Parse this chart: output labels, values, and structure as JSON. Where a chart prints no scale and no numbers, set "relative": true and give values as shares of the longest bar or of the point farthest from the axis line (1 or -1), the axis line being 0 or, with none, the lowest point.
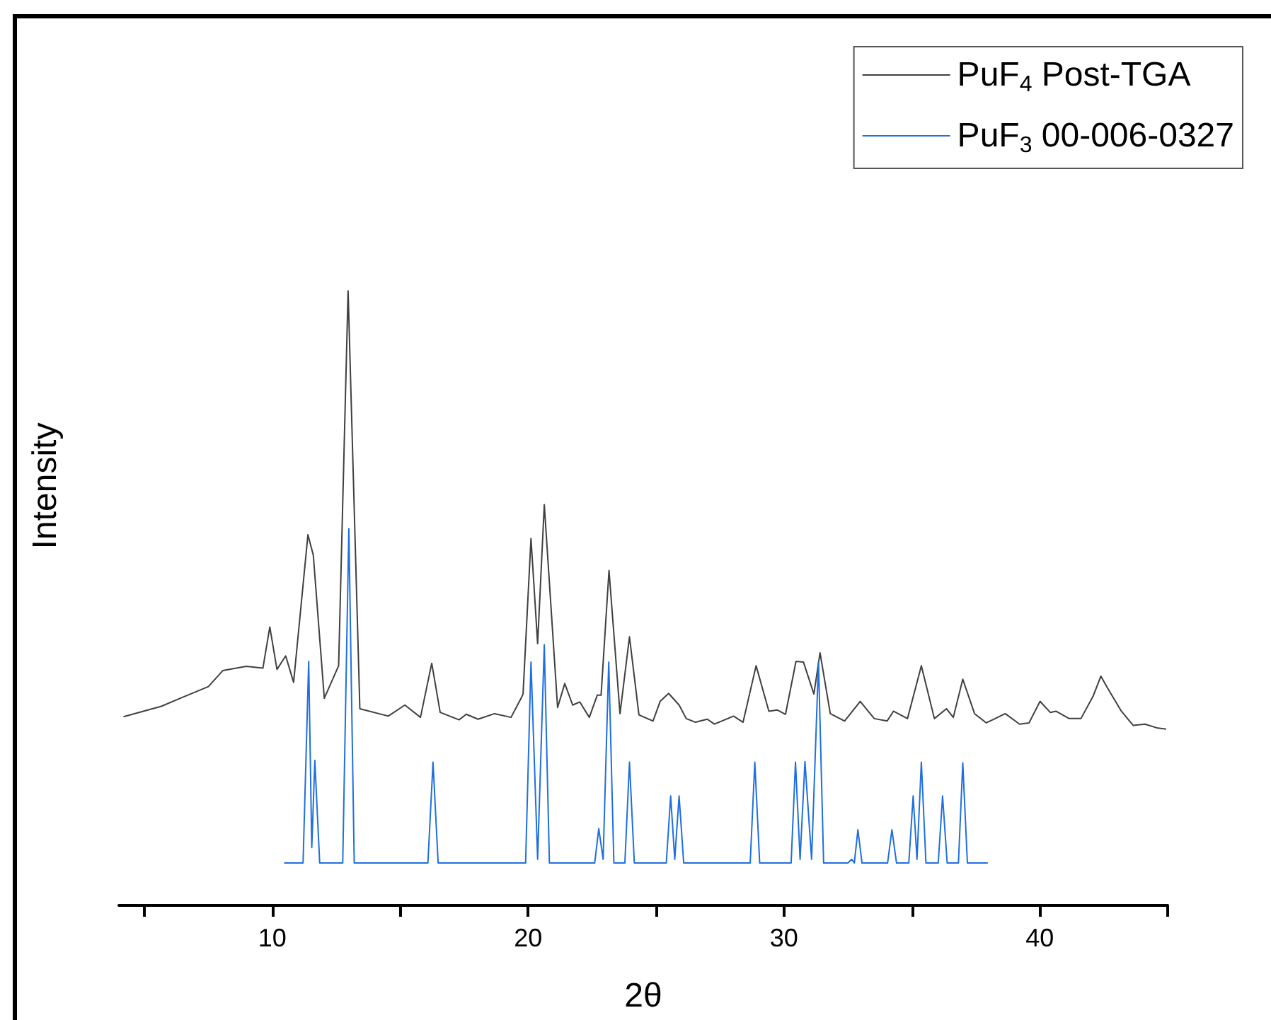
{
  "chart_data": {
    "type": "line",
    "relative": true,
    "xlabel": "2θ",
    "ylabel": "Intensity",
    "xlim": [
      4,
      45
    ],
    "xticks": [
      {
        "value": 5,
        "label": null
      },
      10,
      {
        "value": 15,
        "label": null
      },
      20,
      {
        "value": 25,
        "label": null
      },
      30,
      {
        "value": 35,
        "label": null
      },
      40,
      {
        "value": 45,
        "label": null
      }
    ],
    "legend": "top right",
    "grid": false,
    "marker": "none",
    "line_style": "solid",
    "series": [
      {
        "name": "PuF$_{4}$ Post-TGA",
        "color": "#404040",
        "x": [
          4.18,
          5.66,
          6.4,
          7.5,
          8.06,
          8.98,
          9.63,
          9.9,
          10.18,
          10.52,
          10.83,
          11.39,
          11.6,
          12.03,
          12.59,
          12.96,
          13.42,
          14.53,
          15.18,
          15.79,
          16.23,
          16.56,
          17.3,
          17.58,
          18.04,
          18.69,
          19.33,
          19.71,
          19.8,
          20.11,
          20.37,
          20.63,
          21.15,
          21.43,
          21.74,
          22.02,
          22.39,
          22.7,
          22.85,
          23.16,
          23.59,
          23.96,
          24.33,
          24.88,
          25.16,
          25.49,
          25.9,
          26.18,
          26.54,
          27.0,
          27.28,
          28.03,
          28.4,
          28.91,
          29.41,
          29.73,
          30.06,
          30.47,
          30.76,
          31.17,
          31.41,
          31.81,
          32.37,
          32.98,
          33.53,
          34.03,
          34.28,
          34.83,
          35.37,
          35.88,
          36.35,
          36.62,
          36.99,
          37.45,
          37.91,
          38.65,
          39.21,
          39.58,
          40.01,
          40.41,
          40.63,
          41.15,
          41.61,
          42.08,
          42.39,
          42.63,
          43.19,
          43.65,
          44.11,
          44.57,
          44.94
        ],
        "values": [
          0.307,
          0.324,
          0.337,
          0.356,
          0.382,
          0.389,
          0.386,
          0.453,
          0.384,
          0.406,
          0.363,
          0.603,
          0.57,
          0.337,
          0.39,
          1.0,
          0.32,
          0.308,
          0.326,
          0.306,
          0.394,
          0.314,
          0.302,
          0.311,
          0.303,
          0.312,
          0.306,
          0.336,
          0.344,
          0.597,
          0.426,
          0.652,
          0.322,
          0.361,
          0.326,
          0.331,
          0.306,
          0.342,
          0.342,
          0.545,
          0.312,
          0.437,
          0.31,
          0.3,
          0.332,
          0.345,
          0.326,
          0.304,
          0.298,
          0.303,
          0.295,
          0.308,
          0.298,
          0.39,
          0.316,
          0.318,
          0.311,
          0.397,
          0.396,
          0.344,
          0.411,
          0.312,
          0.3,
          0.332,
          0.304,
          0.3,
          0.316,
          0.304,
          0.39,
          0.304,
          0.32,
          0.306,
          0.368,
          0.312,
          0.297,
          0.312,
          0.295,
          0.297,
          0.332,
          0.314,
          0.316,
          0.304,
          0.304,
          0.34,
          0.373,
          0.355,
          0.316,
          0.293,
          0.295,
          0.289,
          0.287
        ]
      },
      {
        "name": "PuF$_{3}$ 00-006-0327",
        "color": "#1f6fe0",
        "x": [
          10.46,
          11.2,
          11.42,
          11.54,
          11.66,
          11.85,
          12.75,
          12.99,
          13.2,
          16.08,
          16.28,
          16.48,
          19.9,
          20.11,
          20.37,
          20.63,
          20.83,
          22.6,
          22.76,
          22.93,
          23.15,
          23.35,
          23.78,
          23.96,
          24.15,
          25.4,
          25.57,
          25.73,
          25.9,
          26.08,
          28.68,
          28.86,
          29.05,
          30.28,
          30.45,
          30.63,
          30.82,
          31.08,
          31.35,
          31.55,
          32.5,
          32.65,
          32.75,
          32.89,
          33.05,
          34.05,
          34.22,
          34.4,
          34.88,
          35.05,
          35.2,
          35.37,
          35.55,
          36.03,
          36.2,
          36.38,
          36.82,
          36.99,
          37.17,
          37.97
        ],
        "values": [
          0.069,
          0.069,
          0.397,
          0.094,
          0.236,
          0.069,
          0.069,
          0.613,
          0.069,
          0.069,
          0.233,
          0.069,
          0.069,
          0.396,
          0.075,
          0.424,
          0.069,
          0.069,
          0.125,
          0.075,
          0.396,
          0.069,
          0.069,
          0.233,
          0.069,
          0.069,
          0.178,
          0.075,
          0.178,
          0.069,
          0.069,
          0.233,
          0.069,
          0.069,
          0.233,
          0.075,
          0.234,
          0.075,
          0.396,
          0.069,
          0.069,
          0.075,
          0.069,
          0.123,
          0.069,
          0.069,
          0.123,
          0.069,
          0.069,
          0.178,
          0.075,
          0.233,
          0.069,
          0.069,
          0.178,
          0.069,
          0.069,
          0.232,
          0.069,
          0.069
        ]
      }
    ]
  }
}
